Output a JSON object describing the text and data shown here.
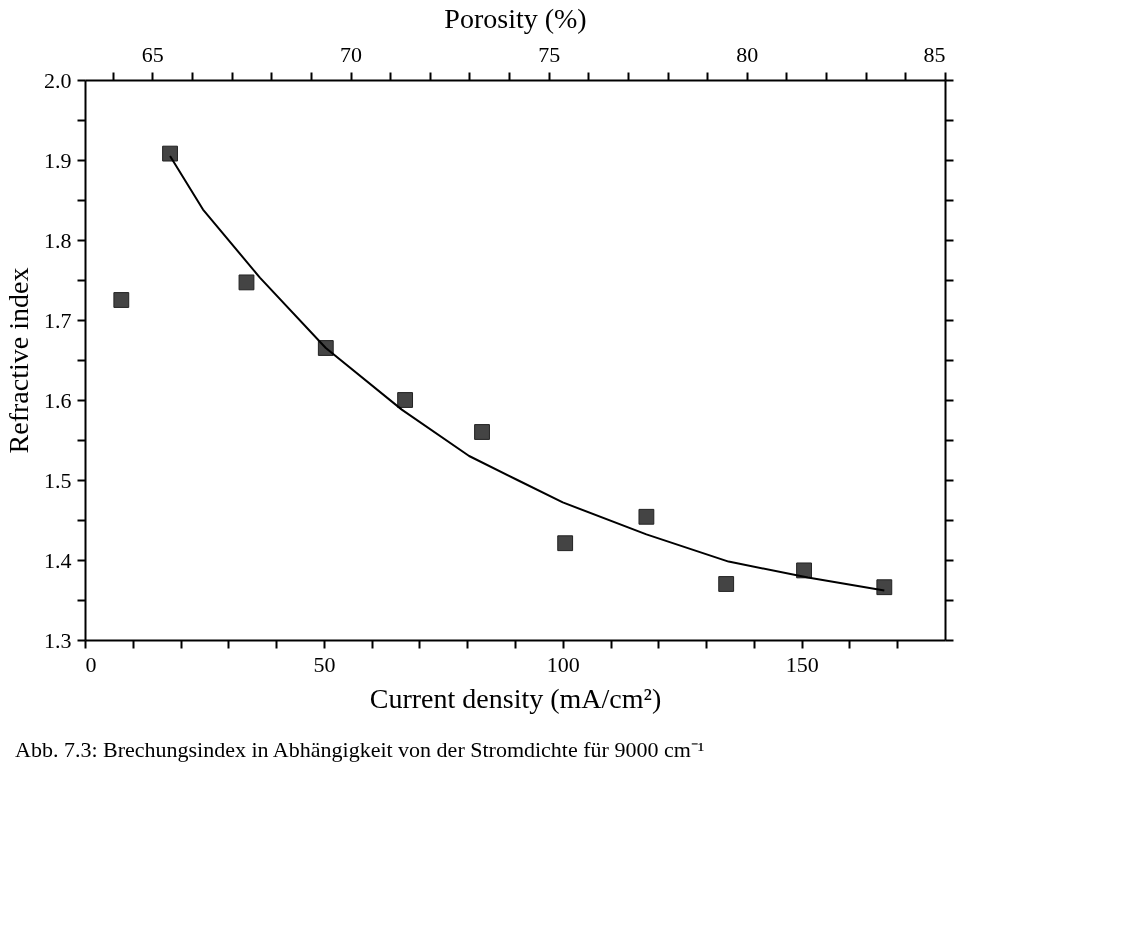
{
  "chart_data": {
    "type": "scatter",
    "xlabel": "Current density (mA/cm²)",
    "ylabel": "Refractive index",
    "x2label": "Porosity (%)",
    "xlim": [
      0,
      180
    ],
    "xticks": [
      0,
      {
        "value": 10,
        "label": null
      },
      {
        "value": 20,
        "label": null
      },
      {
        "value": 30,
        "label": null
      },
      {
        "value": 40,
        "label": null
      },
      50,
      {
        "value": 60,
        "label": null
      },
      {
        "value": 70,
        "label": null
      },
      {
        "value": 80,
        "label": null
      },
      {
        "value": 90,
        "label": null
      },
      100,
      {
        "value": 110,
        "label": null
      },
      {
        "value": 120,
        "label": null
      },
      {
        "value": 130,
        "label": null
      },
      {
        "value": 140,
        "label": null
      },
      150,
      {
        "value": 160,
        "label": null
      },
      {
        "value": 170,
        "label": null
      }
    ],
    "x2lim": [
      63.3,
      85
    ],
    "x2ticks": [
      {
        "value": 64,
        "label": null
      },
      65,
      {
        "value": 66,
        "label": null
      },
      {
        "value": 67,
        "label": null
      },
      {
        "value": 68,
        "label": null
      },
      {
        "value": 69,
        "label": null
      },
      70,
      {
        "value": 71,
        "label": null
      },
      {
        "value": 72,
        "label": null
      },
      {
        "value": 73,
        "label": null
      },
      {
        "value": 74,
        "label": null
      },
      75,
      {
        "value": 76,
        "label": null
      },
      {
        "value": 77,
        "label": null
      },
      {
        "value": 78,
        "label": null
      },
      {
        "value": 79,
        "label": null
      },
      80,
      {
        "value": 81,
        "label": null
      },
      {
        "value": 82,
        "label": null
      },
      {
        "value": 83,
        "label": null
      },
      {
        "value": 84,
        "label": null
      },
      85
    ],
    "ylim": [
      1.3,
      2.0
    ],
    "yticks": [
      1.3,
      {
        "value": 1.35,
        "label": null
      },
      1.4,
      {
        "value": 1.45,
        "label": null
      },
      1.5,
      {
        "value": 1.55,
        "label": null
      },
      1.6,
      {
        "value": 1.65,
        "label": null
      },
      1.7,
      {
        "value": 1.75,
        "label": null
      },
      1.8,
      {
        "value": 1.85,
        "label": null
      },
      1.9,
      {
        "value": 1.95,
        "label": null
      },
      {
        "value": 2.0,
        "label": "2.0"
      }
    ],
    "grid": false,
    "marker": "square",
    "series": [
      {
        "color": "#444444",
        "x": [
          7.6,
          17.8,
          33.8,
          50.4,
          67,
          83.1,
          100.5,
          117.5,
          134.2,
          150.5,
          167.3
        ],
        "values": [
          1.725,
          1.908,
          1.747,
          1.665,
          1.6,
          1.56,
          1.421,
          1.454,
          1.37,
          1.387,
          1.366
        ]
      },
      {
        "type": "line",
        "color": "#000000",
        "marker": "none",
        "line_style": "solid",
        "x": [
          17.8,
          24.7,
          36.6,
          50.4,
          66.3,
          80.4,
          90.5,
          100,
          117.5,
          134.7,
          151.3,
          167.3
        ],
        "values": [
          1.905,
          1.838,
          1.753,
          1.665,
          1.588,
          1.53,
          1.5,
          1.472,
          1.432,
          1.398,
          1.378,
          1.362
        ]
      }
    ],
    "annotations": [
      "Abb. 7.3: Brechungsindex in Abhängigkeit von der Stromdichte für 9000 cm⁻¹"
    ]
  }
}
